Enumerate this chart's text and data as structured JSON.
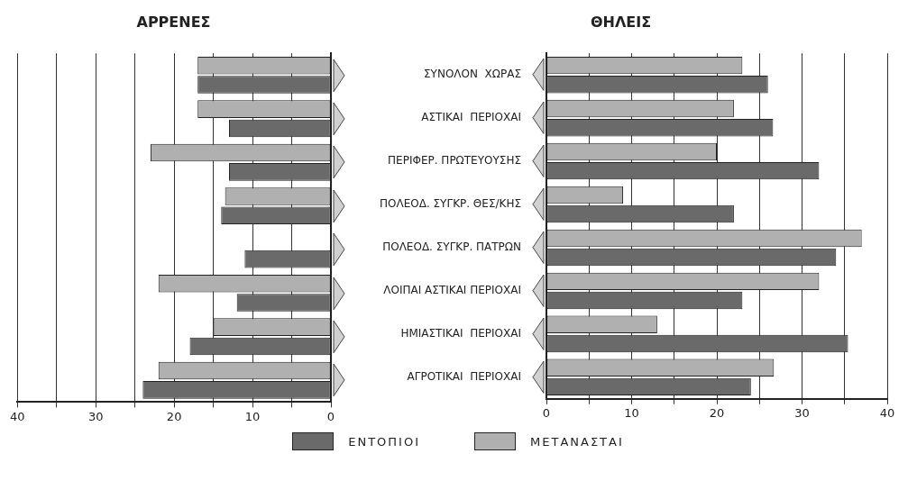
{
  "chart_data": [
    {
      "type": "bar",
      "orientation": "horizontal",
      "title": "ΑΡΡΕΝΕΣ",
      "categories": [
        null,
        null,
        null,
        null,
        null,
        null,
        null,
        null
      ],
      "series": [
        {
          "color": "#b0b0b0",
          "values": [
            17,
            17,
            23,
            13.5,
            null,
            22,
            15,
            22
          ]
        },
        {
          "name": "ΕΝΤΟΠΙΟΙ",
          "color": "#6a6a6a",
          "values": [
            17,
            13,
            13,
            14,
            11,
            12,
            18,
            24
          ]
        }
      ],
      "xlim": [
        40,
        0
      ],
      "xticks": [
        40,
        {
          "value": 35,
          "label": null
        },
        30,
        {
          "value": 25,
          "label": null
        },
        20,
        {
          "value": 15,
          "label": null
        },
        10,
        {
          "value": 5,
          "label": null
        },
        0
      ],
      "grid": "x",
      "tick_labels": "x",
      "legend": "bottom"
    },
    {
      "type": "bar",
      "orientation": "horizontal",
      "title": "ΘΗΛΕΙΣ",
      "categories": [
        "ΣΥΝΟΛΟΝ  ΧΩΡΑΣ",
        "ΑΣΤΙΚΑΙ  ΠΕΡΙΟΧΑΙ",
        "ΠΕΡΙΦΕΡ. ΠΡΩΤΕΥΟΥΣΗΣ",
        "ΠΟΛΕΟΔ. ΣΥΓΚΡ. ΘΕΣ/ΚΗΣ",
        "ΠΟΛΕΟΔ. ΣΥΓΚΡ. ΠΑΤΡΩΝ",
        "ΛΟΙΠΑΙ ΑΣΤΙΚΑΙ ΠΕΡΙΟΧΑΙ",
        "ΗΜΙΑΣΤΙΚΑΙ  ΠΕΡΙΟΧΑΙ",
        "ΑΓΡΟΤΙΚΑΙ  ΠΕΡΙΟΧΑΙ"
      ],
      "series": [
        {
          "name": "ΜΕΤΑΝΑΣΤΑΙ",
          "color": "#b0b0b0",
          "values": [
            23,
            22,
            20,
            9,
            37,
            32,
            13,
            26.7
          ]
        },
        {
          "color": "#6a6a6a",
          "values": [
            26,
            26.6,
            32,
            22,
            34,
            23,
            35.4,
            24
          ]
        }
      ],
      "xlim": [
        0,
        40
      ],
      "xticks": [
        0,
        {
          "value": 5,
          "label": null
        },
        10,
        {
          "value": 15,
          "label": null
        },
        20,
        {
          "value": 25,
          "label": null
        },
        30,
        {
          "value": 35,
          "label": null
        },
        40
      ],
      "grid": "x",
      "legend": "bottom"
    }
  ]
}
